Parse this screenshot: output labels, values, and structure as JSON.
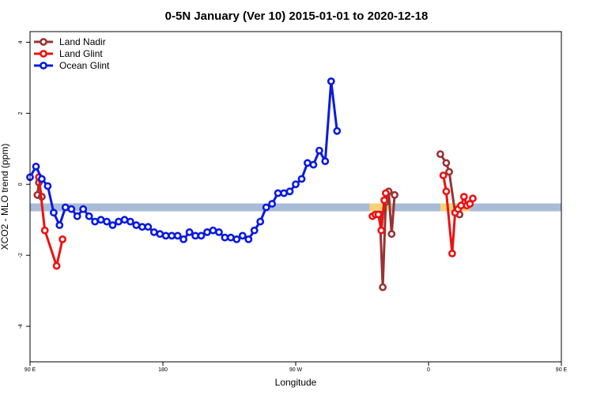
{
  "chart_data": {
    "type": "line",
    "title": "0-5N January (Ver 10)   2015-01-01 to 2020-12-18",
    "xlabel": "Longitude",
    "ylabel": "XCO2 - MLO trend (ppm)",
    "xlim": [
      90,
      450
    ],
    "ylim": [
      -5,
      4.3
    ],
    "x_ticks": [
      {
        "value": 90,
        "label": "90 E"
      },
      {
        "value": 180,
        "label": "180"
      },
      {
        "value": 270,
        "label": "90 W"
      },
      {
        "value": 360,
        "label": "0"
      },
      {
        "value": 450,
        "label": "90 E"
      },
      {
        "value": 540,
        "label": "180"
      }
    ],
    "y_ticks": [
      {
        "value": -4,
        "label": "-4"
      },
      {
        "value": -2,
        "label": "-2"
      },
      {
        "value": 0,
        "label": "0"
      },
      {
        "value": 2,
        "label": "2"
      },
      {
        "value": 4,
        "label": "4"
      }
    ],
    "legend_position": "top-left",
    "background_band": {
      "y_center": -0.65,
      "color": "#a8bcd8",
      "highlight_color": "#f5d27a",
      "highlight_ranges": [
        [
          320,
          335
        ],
        [
          368,
          388
        ],
        [
          528,
          540
        ]
      ]
    },
    "series": [
      {
        "name": "Land Nadir",
        "color": "#993333",
        "segments": [
          [
            [
              95,
              -0.3
            ],
            [
              96,
              0.05
            ],
            [
              98,
              -0.35
            ]
          ],
          [
            [
              327,
              -0.85
            ],
            [
              329,
              -2.9
            ],
            [
              331,
              -0.5
            ],
            [
              333,
              -0.2
            ],
            [
              335,
              -1.4
            ],
            [
              337,
              -0.3
            ]
          ],
          [
            [
              368,
              0.85
            ],
            [
              372,
              0.6
            ],
            [
              374,
              0.35
            ],
            [
              378,
              -0.8
            ],
            [
              381,
              -0.85
            ]
          ],
          [
            [
              456,
              -0.3
            ],
            [
              458,
              0.05
            ],
            [
              460,
              -0.35
            ]
          ]
        ]
      },
      {
        "name": "Land Glint",
        "color": "#ee1111",
        "segments": [
          [
            [
              96,
              0.2
            ],
            [
              100,
              -1.3
            ],
            [
              108,
              -2.3
            ],
            [
              112,
              -1.55
            ]
          ],
          [
            [
              322,
              -0.9
            ],
            [
              324,
              -0.85
            ],
            [
              326,
              -0.85
            ],
            [
              328,
              -1.3
            ],
            [
              330,
              -0.45
            ],
            [
              331,
              -0.25
            ]
          ],
          [
            [
              370,
              0.25
            ],
            [
              372,
              -0.2
            ],
            [
              376,
              -1.95
            ],
            [
              378,
              -0.8
            ],
            [
              380,
              -0.7
            ],
            [
              382,
              -0.6
            ],
            [
              384,
              -0.35
            ],
            [
              386,
              -0.6
            ],
            [
              388,
              -0.55
            ],
            [
              390,
              -0.4
            ]
          ],
          [
            [
              458,
              0.2
            ],
            [
              462,
              -1.3
            ],
            [
              470,
              -2.3
            ],
            [
              474,
              -1.55
            ]
          ],
          [
            [
              480,
              -0.75
            ],
            [
              482,
              -0.45
            ]
          ]
        ]
      },
      {
        "name": "Ocean Glint",
        "color": "#0a1adf",
        "segments": [
          [
            [
              90,
              0.2
            ],
            [
              94,
              0.5
            ],
            [
              98,
              0.15
            ],
            [
              102,
              -0.05
            ],
            [
              106,
              -0.8
            ],
            [
              110,
              -1.15
            ],
            [
              114,
              -0.65
            ],
            [
              118,
              -0.7
            ],
            [
              122,
              -0.9
            ],
            [
              126,
              -0.7
            ],
            [
              130,
              -0.9
            ],
            [
              134,
              -1.05
            ],
            [
              138,
              -1.0
            ],
            [
              142,
              -1.05
            ],
            [
              146,
              -1.15
            ],
            [
              150,
              -1.05
            ],
            [
              154,
              -1.0
            ],
            [
              158,
              -1.05
            ],
            [
              162,
              -1.15
            ],
            [
              166,
              -1.2
            ],
            [
              170,
              -1.2
            ],
            [
              174,
              -1.35
            ],
            [
              178,
              -1.4
            ],
            [
              182,
              -1.45
            ],
            [
              186,
              -1.45
            ],
            [
              190,
              -1.45
            ],
            [
              194,
              -1.55
            ],
            [
              198,
              -1.35
            ],
            [
              202,
              -1.45
            ],
            [
              206,
              -1.45
            ],
            [
              210,
              -1.35
            ],
            [
              214,
              -1.3
            ],
            [
              218,
              -1.35
            ],
            [
              222,
              -1.5
            ],
            [
              226,
              -1.5
            ],
            [
              230,
              -1.55
            ],
            [
              234,
              -1.45
            ],
            [
              238,
              -1.55
            ],
            [
              242,
              -1.3
            ],
            [
              246,
              -1.05
            ],
            [
              250,
              -0.65
            ],
            [
              254,
              -0.55
            ],
            [
              258,
              -0.25
            ],
            [
              262,
              -0.25
            ],
            [
              266,
              -0.2
            ],
            [
              270,
              0.0
            ],
            [
              274,
              0.15
            ],
            [
              278,
              0.6
            ],
            [
              282,
              0.55
            ],
            [
              286,
              0.95
            ],
            [
              290,
              0.65
            ],
            [
              294,
              2.9
            ],
            [
              298,
              1.5
            ]
          ]
        ]
      }
    ]
  }
}
